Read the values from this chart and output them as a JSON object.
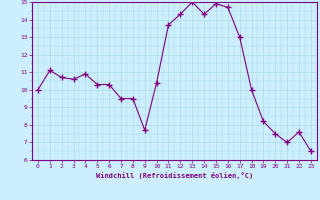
{
  "x": [
    0,
    1,
    2,
    3,
    4,
    5,
    6,
    7,
    8,
    9,
    10,
    11,
    12,
    13,
    14,
    15,
    16,
    17,
    18,
    19,
    20,
    21,
    22,
    23
  ],
  "y": [
    10.0,
    11.1,
    10.7,
    10.6,
    10.9,
    10.3,
    10.3,
    9.5,
    9.5,
    7.7,
    10.4,
    13.7,
    14.3,
    15.0,
    14.3,
    14.9,
    14.7,
    13.0,
    10.0,
    8.2,
    7.5,
    7.0,
    7.6,
    6.5
  ],
  "line_color": "#800080",
  "marker": "+",
  "marker_size": 4,
  "bg_color": "#cceeff",
  "grid_color": "#aadddd",
  "xlabel": "Windchill (Refroidissement éolien,°C)",
  "ylim": [
    6,
    15
  ],
  "xlim": [
    -0.5,
    23.5
  ],
  "yticks": [
    6,
    7,
    8,
    9,
    10,
    11,
    12,
    13,
    14,
    15
  ],
  "xticks": [
    0,
    1,
    2,
    3,
    4,
    5,
    6,
    7,
    8,
    9,
    10,
    11,
    12,
    13,
    14,
    15,
    16,
    17,
    18,
    19,
    20,
    21,
    22,
    23
  ]
}
